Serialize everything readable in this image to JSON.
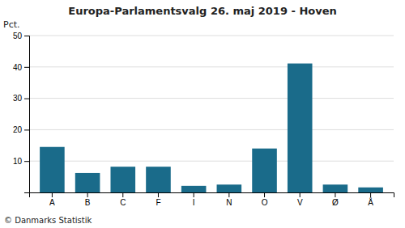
{
  "chart_data": {
    "type": "bar",
    "title": "Europa-Parlamentsvalg 26. maj 2019 - Hoven",
    "categories": [
      "A",
      "B",
      "C",
      "F",
      "I",
      "N",
      "O",
      "V",
      "Ø",
      "Å"
    ],
    "values": [
      14.5,
      6.2,
      8.2,
      8.2,
      2.1,
      2.5,
      14.0,
      41.1,
      2.5,
      1.6
    ],
    "color": "#1a6b8a",
    "ylabel": "Pct.",
    "ylim": [
      0,
      50
    ],
    "yticks": [
      10,
      20,
      30,
      40,
      50
    ],
    "grid": true,
    "footer": "© Danmarks Statistik"
  }
}
